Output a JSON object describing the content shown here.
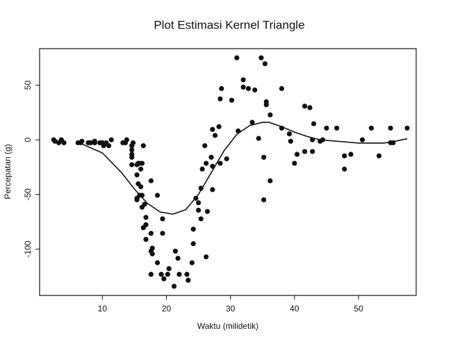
{
  "chart_data": {
    "type": "scatter",
    "title": "Plot Estimasi Kernel Triangle",
    "x_label": "Waktu (milidetik)",
    "y_label": "Percepatan (g)",
    "color": "#111111",
    "line_color": "#111111",
    "x": [
      2.4,
      2.6,
      3.2,
      3.6,
      4.0,
      6.2,
      6.6,
      6.8,
      7.8,
      8.2,
      8.8,
      8.8,
      9.6,
      10.0,
      10.2,
      10.6,
      11.0,
      11.4,
      13.2,
      13.6,
      13.8,
      14.6,
      14.6,
      14.6,
      14.6,
      14.6,
      14.6,
      14.8,
      15.4,
      15.4,
      15.4,
      15.4,
      15.6,
      15.6,
      15.8,
      15.8,
      16.0,
      16.0,
      16.2,
      16.2,
      16.2,
      16.4,
      16.4,
      16.6,
      16.8,
      16.8,
      16.8,
      17.6,
      17.6,
      17.6,
      17.6,
      17.8,
      17.8,
      18.6,
      18.6,
      19.2,
      19.4,
      19.4,
      19.6,
      20.2,
      20.4,
      21.2,
      21.4,
      21.8,
      22.0,
      23.2,
      23.4,
      24.0,
      24.2,
      24.2,
      24.6,
      25.0,
      25.0,
      25.4,
      25.4,
      25.6,
      26.0,
      26.2,
      26.2,
      26.4,
      27.0,
      27.2,
      27.2,
      27.2,
      27.6,
      28.2,
      28.4,
      28.4,
      28.6,
      29.4,
      30.2,
      31.0,
      31.2,
      32.0,
      32.0,
      32.8,
      33.4,
      33.8,
      34.4,
      34.8,
      35.2,
      35.2,
      35.4,
      35.6,
      35.6,
      36.2,
      36.2,
      38.0,
      38.0,
      39.2,
      39.4,
      40.0,
      40.4,
      41.6,
      41.6,
      42.4,
      42.8,
      42.8,
      43.0,
      44.0,
      44.4,
      45.0,
      46.6,
      47.8,
      47.8,
      48.8,
      50.6,
      52.0,
      53.2,
      55.0,
      55.0,
      55.4,
      57.6
    ],
    "values": [
      0,
      -1.3,
      -2.7,
      0,
      -2.7,
      -2.7,
      -2.7,
      -1.3,
      -2.7,
      -2.7,
      -1.3,
      -2.7,
      -2.7,
      -2.7,
      -5.4,
      -2.7,
      -5.4,
      0,
      -2.7,
      -2.7,
      0,
      -13.3,
      -5.4,
      -5.4,
      -9.3,
      -16,
      -22.8,
      -2.7,
      -22.8,
      -32.1,
      -53.5,
      -54.9,
      -40.2,
      -21.5,
      -21.5,
      -50.8,
      -42.9,
      -26.8,
      -21.5,
      -50.8,
      -61.7,
      -5.4,
      -80.4,
      -59,
      -71,
      -91.1,
      -77.7,
      -37.5,
      -85.6,
      -123.1,
      -101.9,
      -99.1,
      -104.4,
      -112.5,
      -50.8,
      -123.1,
      -85.6,
      -72.3,
      -127.2,
      -123.1,
      -117.9,
      -134,
      -101.9,
      -108.4,
      -123.1,
      -123.1,
      -128.5,
      -112.5,
      -95.1,
      -81.8,
      -53.5,
      -64.4,
      -57.6,
      -72.3,
      -44.3,
      -26.8,
      -5.4,
      -107.1,
      -21.5,
      -65.6,
      -16,
      -45.6,
      -24.2,
      9.5,
      4,
      12,
      -21.5,
      37.5,
      46.9,
      -17.4,
      36.2,
      75,
      8.1,
      54.9,
      48.2,
      46.9,
      16,
      45.6,
      1.3,
      75,
      -16,
      -54.9,
      69.6,
      34.8,
      32.1,
      -37.5,
      22.8,
      46.9,
      10.7,
      5.4,
      -1.3,
      -21.5,
      -13.3,
      30.8,
      -10.7,
      29.4,
      0,
      -10.7,
      14.7,
      -1.3,
      0,
      10.7,
      10.7,
      -26.8,
      -14.7,
      -13.3,
      0,
      10.7,
      -14.7,
      -2.7,
      10.7,
      -2.7,
      10.7
    ],
    "smooth": {
      "x": [
        6.5,
        10,
        13,
        15,
        17,
        19,
        21,
        23,
        25,
        27,
        29,
        31,
        33,
        35,
        36,
        38,
        40,
        42,
        44,
        46,
        48,
        50,
        52,
        54,
        56,
        57.6
      ],
      "values": [
        -3,
        -12,
        -30,
        -45,
        -58,
        -66,
        -68,
        -64,
        -50,
        -30,
        -10,
        5,
        13,
        16,
        16,
        12,
        7,
        3,
        0,
        -1,
        -2,
        -3,
        -3,
        -3,
        -1,
        1
      ]
    },
    "xlim": [
      0.2,
      59
    ],
    "ylim": [
      -142.4,
      83.4
    ],
    "xticks": [
      10,
      20,
      30,
      40,
      50
    ],
    "yticks": [
      -100,
      -50,
      0,
      50
    ]
  }
}
